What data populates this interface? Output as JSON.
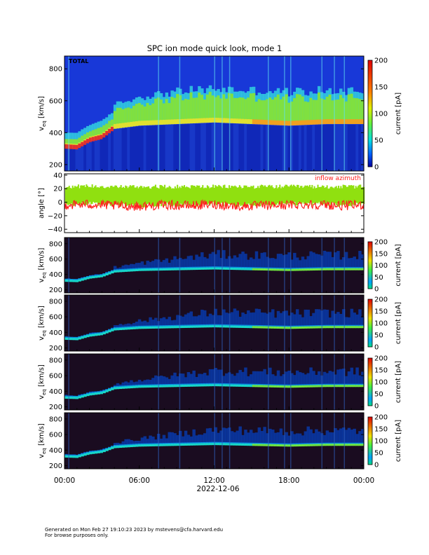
{
  "title": "SPC ion mode quick look, mode 1",
  "footer": {
    "line1": "Generated on Mon Feb 27 19:10:23 2023 by mstevens@cfa.harvard.edu",
    "line2": "For browse purposes only."
  },
  "colors": {
    "high": "#e00000",
    "mid": "#80e000",
    "low": "#0000c0",
    "azimuth": "#ff2020",
    "elevation": "#90e010"
  },
  "chart_data": [
    {
      "type": "heatmap",
      "panel": "total",
      "label": "TOTAL",
      "ylabel": "v",
      "ylabel_sub": "eq",
      "ylabel_unit": "[km/s]",
      "ylim": [
        160,
        880
      ],
      "yticks": [
        "200",
        "400",
        "600",
        "800"
      ],
      "yticks_values": [
        200,
        400,
        600,
        800
      ],
      "colorbar": {
        "label": "current [pA]",
        "ticks": [
          "0",
          "50",
          "100",
          "150",
          "200"
        ],
        "range": [
          0,
          200
        ]
      },
      "xlim_hours": [
        0,
        24
      ],
      "peak_speed_trace": {
        "hours": [
          0,
          1,
          2,
          3,
          4,
          6,
          9,
          12,
          15,
          18,
          21,
          24
        ],
        "speed": [
          320,
          315,
          360,
          380,
          440,
          460,
          470,
          480,
          470,
          460,
          470,
          470
        ]
      }
    },
    {
      "type": "line",
      "panel": "angle",
      "ylabel": "angle [°]",
      "ylim": [
        -45,
        42
      ],
      "yticks": [
        "−40",
        "−20",
        "0",
        "20",
        "40"
      ],
      "yticks_values": [
        -40,
        -20,
        0,
        20,
        40
      ],
      "legend": "inflow azimuth",
      "xlim_hours": [
        0,
        24
      ],
      "series": [
        {
          "hours": [
            0,
            2,
            4,
            6,
            8,
            10,
            12,
            14,
            16,
            18,
            20,
            22,
            24
          ],
          "values": [
            22,
            23,
            22,
            22,
            22,
            22,
            22,
            22,
            22,
            22,
            22,
            22,
            22
          ]
        },
        {
          "name": "inflow azimuth",
          "hours": [
            0,
            2,
            4,
            6,
            8,
            10,
            12,
            14,
            16,
            18,
            20,
            22,
            24
          ],
          "values": [
            -3,
            -2,
            -4,
            -5,
            -3,
            -4,
            -2,
            -5,
            -4,
            -3,
            -2,
            -4,
            -3
          ]
        }
      ]
    },
    {
      "type": "heatmap",
      "panel": "cup1",
      "ylabel": "v",
      "ylabel_sub": "eq",
      "ylabel_unit": "[km/s]",
      "ylim": [
        160,
        880
      ],
      "yticks": [
        "200",
        "400",
        "600",
        "800"
      ],
      "yticks_values": [
        200,
        400,
        600,
        800
      ],
      "colorbar": {
        "label": "current [pA]",
        "ticks": [
          "0",
          "50",
          "100",
          "150",
          "200"
        ],
        "range": [
          0,
          200
        ]
      }
    },
    {
      "type": "heatmap",
      "panel": "cup2",
      "ylabel": "v",
      "ylabel_sub": "eq",
      "ylabel_unit": "[km/s]",
      "ylim": [
        160,
        880
      ],
      "yticks": [
        "200",
        "400",
        "600",
        "800"
      ],
      "yticks_values": [
        200,
        400,
        600,
        800
      ],
      "colorbar": {
        "label": "current [pA]",
        "ticks": [
          "0",
          "50",
          "100",
          "150",
          "200"
        ],
        "range": [
          0,
          200
        ]
      }
    },
    {
      "type": "heatmap",
      "panel": "cup3",
      "ylabel": "v",
      "ylabel_sub": "eq",
      "ylabel_unit": "[km/s]",
      "ylim": [
        160,
        880
      ],
      "yticks": [
        "200",
        "400",
        "600",
        "800"
      ],
      "yticks_values": [
        200,
        400,
        600,
        800
      ],
      "colorbar": {
        "label": "current [pA]",
        "ticks": [
          "0",
          "50",
          "100",
          "150",
          "200"
        ],
        "range": [
          0,
          200
        ]
      }
    },
    {
      "type": "heatmap",
      "panel": "cup4",
      "ylabel": "v",
      "ylabel_sub": "eq",
      "ylabel_unit": "[km/s]",
      "ylim": [
        160,
        880
      ],
      "yticks": [
        "200",
        "400",
        "600",
        "800"
      ],
      "yticks_values": [
        200,
        400,
        600,
        800
      ],
      "colorbar": {
        "label": "current [pA]",
        "ticks": [
          "0",
          "50",
          "100",
          "150",
          "200"
        ],
        "range": [
          0,
          200
        ]
      },
      "xticks": [
        "00:00",
        "06:00",
        "12:00",
        "18:00",
        "00:00"
      ],
      "xticks_hours": [
        0,
        6,
        12,
        18,
        24
      ],
      "xlabel": "2022-12-06"
    }
  ]
}
